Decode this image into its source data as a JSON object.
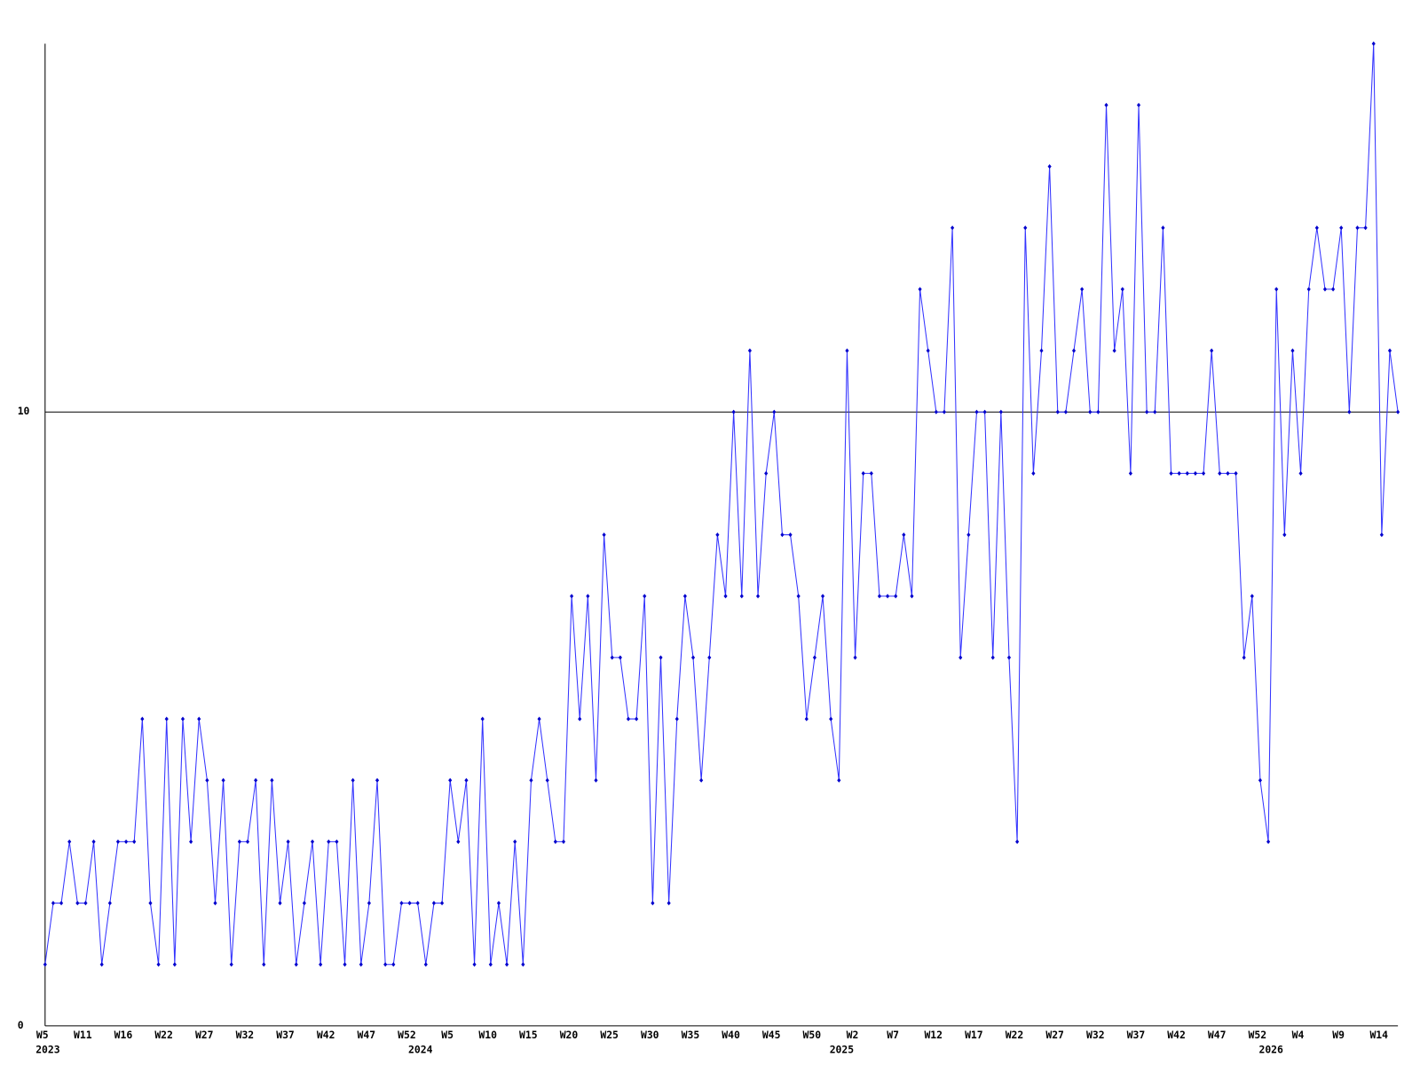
{
  "chart_data": {
    "type": "line",
    "categories": [
      "W5",
      null,
      null,
      null,
      null,
      "W11",
      null,
      null,
      null,
      null,
      "W16",
      null,
      null,
      null,
      null,
      "W22",
      null,
      null,
      null,
      null,
      "W27",
      null,
      null,
      null,
      null,
      "W32",
      null,
      null,
      null,
      null,
      "W37",
      null,
      null,
      null,
      null,
      "W42",
      null,
      null,
      null,
      null,
      "W47",
      null,
      null,
      null,
      null,
      "W52",
      null,
      null,
      null,
      null,
      "W5",
      null,
      null,
      null,
      null,
      "W10",
      null,
      null,
      null,
      null,
      "W15",
      null,
      null,
      null,
      null,
      "W20",
      null,
      null,
      null,
      null,
      "W25",
      null,
      null,
      null,
      null,
      "W30",
      null,
      null,
      null,
      null,
      "W35",
      null,
      null,
      null,
      null,
      "W40",
      null,
      null,
      null,
      null,
      "W45",
      null,
      null,
      null,
      null,
      "W50",
      null,
      null,
      null,
      null,
      "W2",
      null,
      null,
      null,
      null,
      "W7",
      null,
      null,
      null,
      null,
      "W12",
      null,
      null,
      null,
      null,
      "W17",
      null,
      null,
      null,
      null,
      "W22",
      null,
      null,
      null,
      null,
      "W27",
      null,
      null,
      null,
      null,
      "W32",
      null,
      null,
      null,
      null,
      "W37",
      null,
      null,
      null,
      null,
      "W42",
      null,
      null,
      null,
      null,
      "W47",
      null,
      null,
      null,
      null,
      "W52",
      null,
      null,
      null,
      null,
      "W4",
      null,
      null,
      null,
      null,
      "W9",
      null,
      null,
      null,
      null,
      "W14",
      null,
      null
    ],
    "category_years": [
      "2023",
      null,
      null,
      null,
      null,
      null,
      null,
      null,
      null,
      null,
      null,
      null,
      null,
      null,
      null,
      null,
      null,
      null,
      null,
      null,
      null,
      null,
      null,
      null,
      null,
      null,
      null,
      null,
      null,
      null,
      null,
      null,
      null,
      null,
      null,
      null,
      null,
      null,
      null,
      null,
      null,
      null,
      null,
      null,
      null,
      null,
      "2024",
      null,
      null,
      null,
      null,
      null,
      null,
      null,
      null,
      null,
      null,
      null,
      null,
      null,
      null,
      null,
      null,
      null,
      null,
      null,
      null,
      null,
      null,
      null,
      null,
      null,
      null,
      null,
      null,
      null,
      null,
      null,
      null,
      null,
      null,
      null,
      null,
      null,
      null,
      null,
      null,
      null,
      null,
      null,
      null,
      null,
      null,
      null,
      null,
      null,
      null,
      null,
      "2025",
      null,
      null,
      null,
      null,
      null,
      null,
      null,
      null,
      null,
      null,
      null,
      null,
      null,
      null,
      null,
      null,
      null,
      null,
      null,
      null,
      null,
      null,
      null,
      null,
      null,
      null,
      null,
      null,
      null,
      null,
      null,
      null,
      null,
      null,
      null,
      null,
      null,
      null,
      null,
      null,
      null,
      null,
      null,
      null,
      null,
      null,
      null,
      null,
      null,
      null,
      null,
      null,
      "2026",
      null,
      null,
      null,
      null,
      null,
      null,
      null,
      null,
      null,
      null,
      null,
      null,
      null,
      null,
      null,
      null
    ],
    "series": [
      {
        "color": "#3333ff",
        "marker_color": "#0000cc",
        "values": [
          1,
          2,
          2,
          3,
          2,
          2,
          3,
          1,
          2,
          3,
          3,
          3,
          5,
          2,
          1,
          5,
          1,
          5,
          3,
          5,
          4,
          2,
          4,
          1,
          3,
          3,
          4,
          1,
          4,
          2,
          3,
          1,
          2,
          3,
          1,
          3,
          3,
          1,
          4,
          1,
          2,
          4,
          1,
          1,
          2,
          2,
          2,
          1,
          2,
          2,
          4,
          3,
          4,
          1,
          5,
          1,
          2,
          1,
          3,
          1,
          4,
          5,
          4,
          3,
          3,
          7,
          5,
          7,
          4,
          8,
          6,
          6,
          5,
          5,
          7,
          2,
          6,
          2,
          5,
          7,
          6,
          4,
          6,
          8,
          7,
          10,
          7,
          11,
          7,
          9,
          10,
          8,
          8,
          7,
          5,
          6,
          7,
          5,
          4,
          11,
          6,
          9,
          9,
          7,
          7,
          7,
          8,
          7,
          12,
          11,
          10,
          10,
          13,
          6,
          8,
          10,
          10,
          6,
          10,
          6,
          3,
          13,
          9,
          11,
          14,
          10,
          10,
          11,
          12,
          10,
          10,
          15,
          11,
          12,
          9,
          15,
          10,
          10,
          13,
          9,
          9,
          9,
          9,
          9,
          11,
          9,
          9,
          9,
          6,
          7,
          4,
          3,
          12,
          8,
          11,
          9,
          12,
          13,
          12,
          12,
          13,
          10,
          13,
          13,
          16,
          8,
          11,
          10
        ]
      }
    ],
    "ylim": [
      0,
      16
    ],
    "yticks": [
      0,
      10
    ],
    "grid": true
  }
}
